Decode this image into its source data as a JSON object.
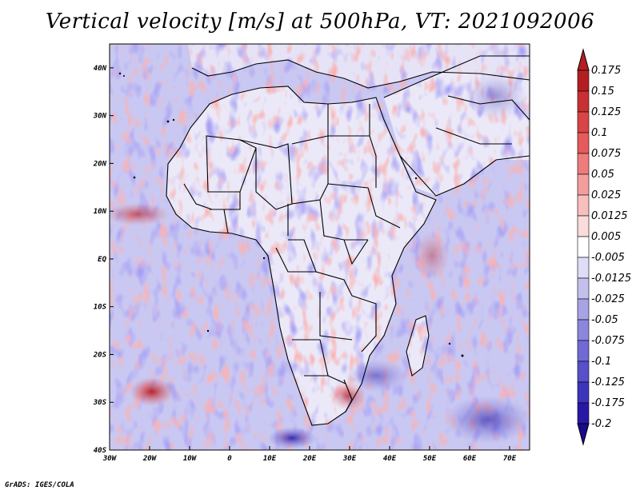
{
  "title": "Vertical velocity [m/s] at 500hPa, VT: 2021092006",
  "credit": "GrADS: IGES/COLA",
  "map": {
    "region": "Africa",
    "lon_range": [
      -30,
      75
    ],
    "lat_range": [
      -40,
      45
    ],
    "lat_ticks": [
      {
        "value": 40,
        "label": "40N"
      },
      {
        "value": 30,
        "label": "30N"
      },
      {
        "value": 20,
        "label": "20N"
      },
      {
        "value": 10,
        "label": "10N"
      },
      {
        "value": 0,
        "label": "EQ"
      },
      {
        "value": -10,
        "label": "10S"
      },
      {
        "value": -20,
        "label": "20S"
      },
      {
        "value": -30,
        "label": "30S"
      },
      {
        "value": -40,
        "label": "40S"
      }
    ],
    "lon_ticks": [
      {
        "value": -30,
        "label": "30W"
      },
      {
        "value": -20,
        "label": "20W"
      },
      {
        "value": -10,
        "label": "10W"
      },
      {
        "value": 0,
        "label": "0"
      },
      {
        "value": 10,
        "label": "10E"
      },
      {
        "value": 20,
        "label": "20E"
      },
      {
        "value": 30,
        "label": "30E"
      },
      {
        "value": 40,
        "label": "40E"
      },
      {
        "value": 50,
        "label": "50E"
      },
      {
        "value": 60,
        "label": "60E"
      },
      {
        "value": 70,
        "label": "70E"
      }
    ]
  },
  "colorbar": {
    "units": "m/s",
    "levels": [
      "0.175",
      "0.15",
      "0.125",
      "0.1",
      "0.075",
      "0.05",
      "0.025",
      "0.0125",
      "0.005",
      "-0.005",
      "-0.0125",
      "-0.025",
      "-0.05",
      "-0.075",
      "-0.1",
      "-0.125",
      "-0.175",
      "-0.2"
    ],
    "colors": [
      "#b41e22",
      "#c93033",
      "#d94447",
      "#e65a5b",
      "#ee7c7c",
      "#f39e9d",
      "#f7bfbe",
      "#fadcdc",
      "#ffffff",
      "#dedcf6",
      "#c3c0ee",
      "#a7a3e6",
      "#8c86dd",
      "#716ad5",
      "#5750ca",
      "#3d35bb",
      "#2818a5",
      "#1a0a8c"
    ]
  },
  "colors": {
    "ocean_base": "#b8b8f0",
    "land_base": "#e8e6f6",
    "border": "#000000"
  }
}
